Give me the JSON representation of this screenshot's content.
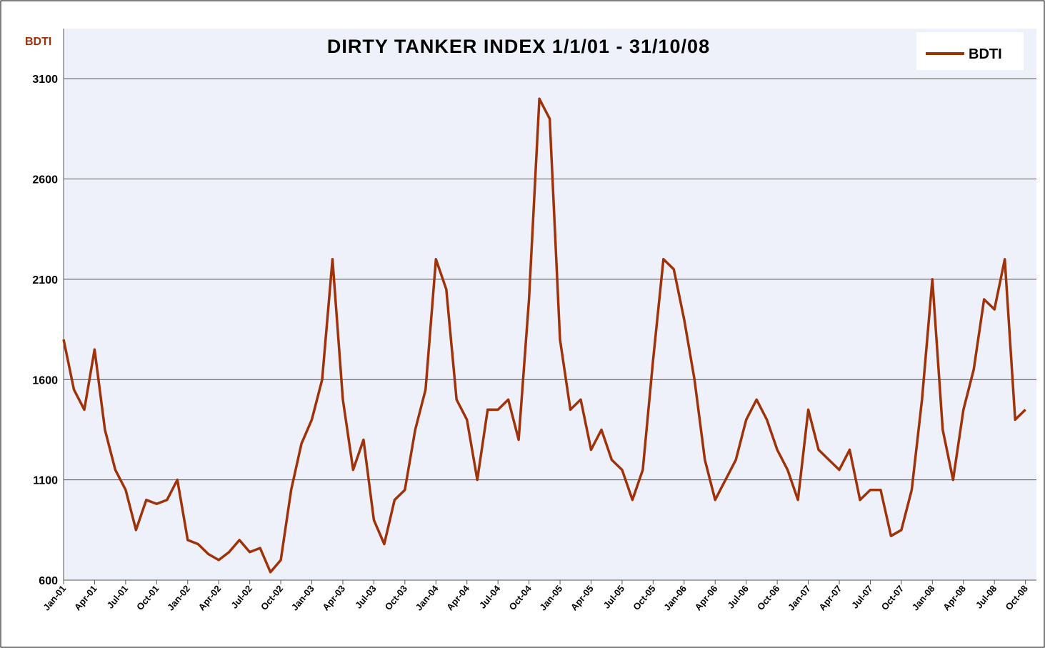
{
  "chart_data": {
    "type": "line",
    "title": "DIRTY TANKER INDEX 1/1/01 - 31/10/08",
    "y_label": "BDTI",
    "categories": [
      "Jan-01",
      null,
      null,
      "Apr-01",
      null,
      null,
      "Jul-01",
      null,
      null,
      "Oct-01",
      null,
      null,
      "Jan-02",
      null,
      null,
      "Apr-02",
      null,
      null,
      "Jul-02",
      null,
      null,
      "Oct-02",
      null,
      null,
      "Jan-03",
      null,
      null,
      "Apr-03",
      null,
      null,
      "Jul-03",
      null,
      null,
      "Oct-03",
      null,
      null,
      "Jan-04",
      null,
      null,
      "Apr-04",
      null,
      null,
      "Jul-04",
      null,
      null,
      "Oct-04",
      null,
      null,
      "Jan-05",
      null,
      null,
      "Apr-05",
      null,
      null,
      "Jul-05",
      null,
      null,
      "Oct-05",
      null,
      null,
      "Jan-06",
      null,
      null,
      "Apr-06",
      null,
      null,
      "Jul-06",
      null,
      null,
      "Oct-06",
      null,
      null,
      "Jan-07",
      null,
      null,
      "Apr-07",
      null,
      null,
      "Jul-07",
      null,
      null,
      "Oct-07",
      null,
      null,
      "Jan-08",
      null,
      null,
      "Apr-08",
      null,
      null,
      "Jul-08",
      null,
      null,
      "Oct-08"
    ],
    "series": [
      {
        "name": "BDTI",
        "color": "#a0320a",
        "values": [
          1800,
          1550,
          1450,
          1750,
          1350,
          1150,
          1050,
          850,
          1000,
          980,
          1000,
          1100,
          800,
          780,
          730,
          700,
          740,
          800,
          740,
          760,
          640,
          700,
          1050,
          1280,
          1400,
          1600,
          2200,
          1500,
          1150,
          1300,
          900,
          780,
          1000,
          1050,
          1350,
          1550,
          2200,
          2050,
          1500,
          1400,
          1100,
          1450,
          1450,
          1500,
          1300,
          2000,
          3000,
          2900,
          1800,
          1450,
          1500,
          1250,
          1350,
          1200,
          1150,
          1000,
          1150,
          1700,
          2200,
          2150,
          1900,
          1600,
          1200,
          1000,
          1100,
          1200,
          1400,
          1500,
          1400,
          1250,
          1150,
          1000,
          1450,
          1250,
          1200,
          1150,
          1250,
          1000,
          1050,
          1050,
          820,
          850,
          1050,
          1500,
          2100,
          1350,
          1100,
          1450,
          1650,
          2000,
          1950,
          2200,
          1400,
          1450
        ]
      }
    ],
    "ylim": [
      600,
      3350
    ],
    "yticks": [
      600,
      1100,
      1600,
      2100,
      2600,
      3100
    ],
    "grid": true,
    "legend": "top-right"
  }
}
